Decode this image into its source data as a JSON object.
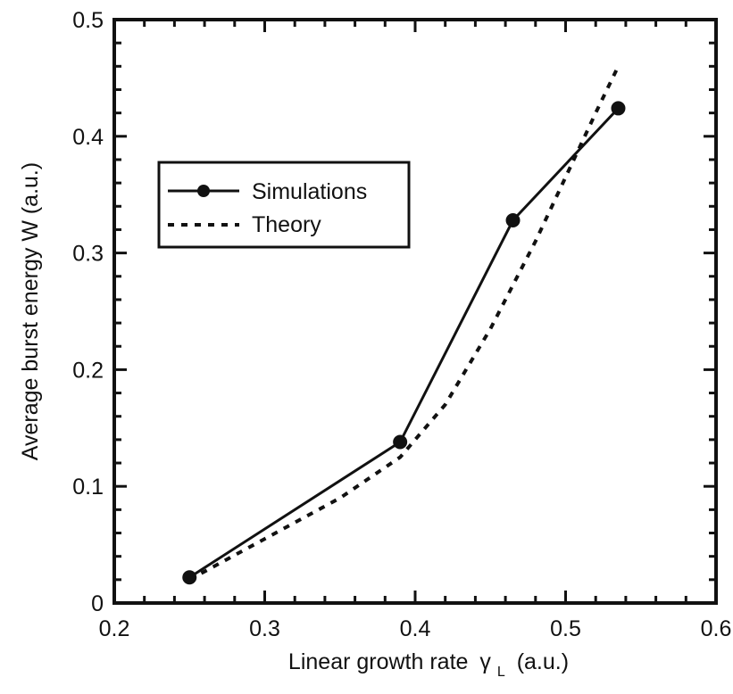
{
  "chart_data": {
    "type": "line",
    "title": "",
    "xlabel": "Linear growth rate",
    "xlabel_symbol": "γ",
    "xlabel_subscript": "L",
    "xlabel_units": "(a.u.)",
    "ylabel": "Average burst energy  W (a.u.)",
    "xlim": [
      0.2,
      0.6
    ],
    "ylim": [
      0,
      0.5
    ],
    "xticks": [
      "0.2",
      "0.3",
      "0.4",
      "0.5",
      "0.6"
    ],
    "yticks": [
      "0",
      "0.1",
      "0.2",
      "0.3",
      "0.4",
      "0.5"
    ],
    "grid": false,
    "legend_position": "upper-left",
    "series": [
      {
        "name": "Simulations",
        "style": "solid-markers",
        "x": [
          0.25,
          0.39,
          0.465,
          0.535
        ],
        "y": [
          0.022,
          0.138,
          0.328,
          0.424
        ]
      },
      {
        "name": "Theory",
        "style": "dotted",
        "x": [
          0.25,
          0.3,
          0.35,
          0.39,
          0.42,
          0.45,
          0.48,
          0.5,
          0.52,
          0.535
        ],
        "y": [
          0.02,
          0.055,
          0.09,
          0.125,
          0.17,
          0.235,
          0.31,
          0.365,
          0.42,
          0.46
        ]
      }
    ],
    "colors": {
      "line": "#111111",
      "background": "#ffffff"
    }
  }
}
